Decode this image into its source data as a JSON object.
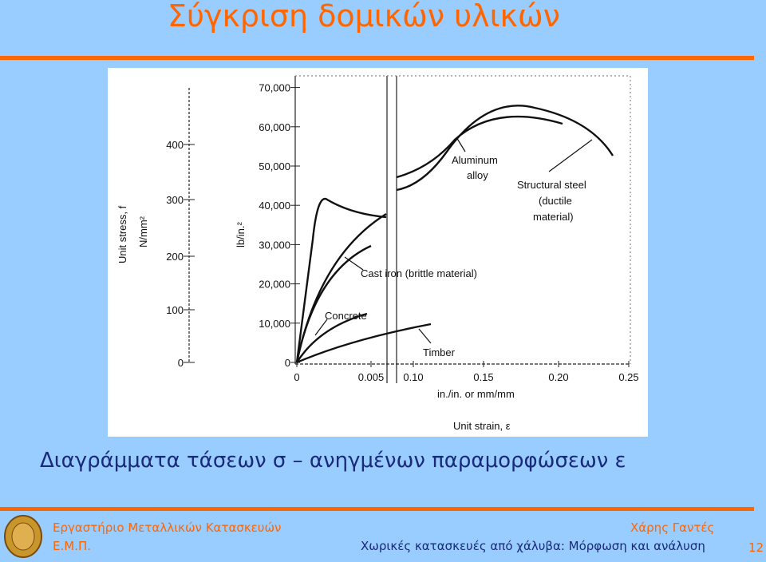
{
  "title": "Σύγκριση δομικών υλικών",
  "figure": {
    "y_axis_label": "Unit stress, f",
    "y_axis_unit": "N/mm²",
    "left_ticks": [
      "0",
      "100",
      "200",
      "300",
      "400"
    ],
    "right_axis_unit": "lb/in.²",
    "right_ticks": [
      "0",
      "10,000",
      "20,000",
      "30,000",
      "40,000",
      "50,000",
      "60,000",
      "70,000"
    ],
    "x_ticks": [
      "0",
      "0.005",
      "0.10",
      "0.15",
      "0.20",
      "0.25"
    ],
    "x_axis_unit": "in./in. or mm/mm",
    "x_axis_label": "Unit strain, ε",
    "annotations": {
      "aluminum": [
        "Aluminum",
        "alloy"
      ],
      "steel": [
        "Structural steel",
        "(ductile",
        "material)"
      ],
      "cast_iron": "Cast iron (brittle material)",
      "concrete": "Concrete",
      "timber": "Timber"
    }
  },
  "caption": "Διαγράμματα τάσεων σ – ανηγμένων παραμορφώσεων ε",
  "footer": {
    "lab": "Εργαστήριο Μεταλλικών Κατασκευών",
    "school": "Ε.Μ.Π.",
    "author": "Χάρης Γαντές",
    "course": "Χωρικές κατασκευές από χάλυβα: Μόρφωση και ανάλυση",
    "page": "12"
  }
}
